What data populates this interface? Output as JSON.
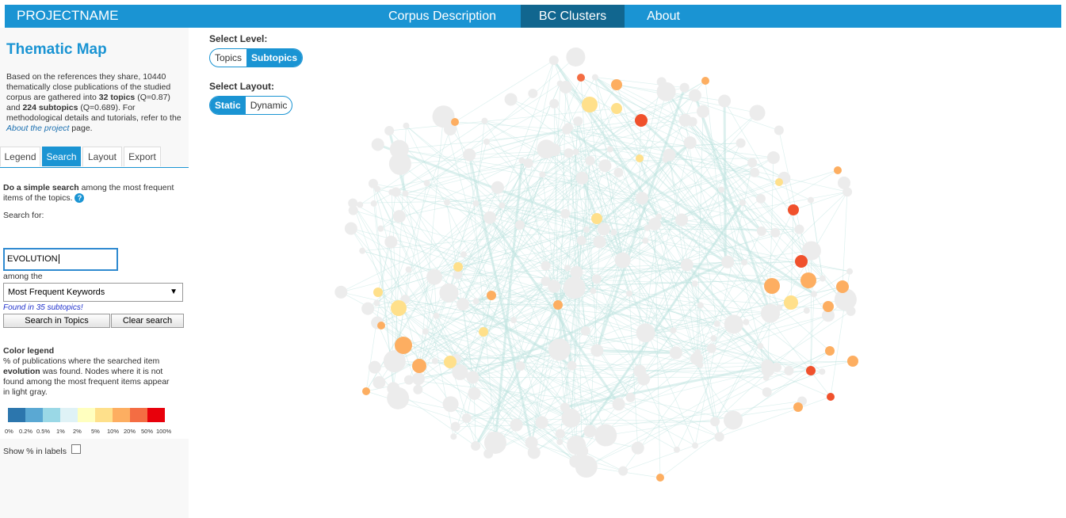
{
  "navbar": {
    "brand": "PROJECTNAME",
    "items": [
      {
        "label": "Corpus Description",
        "active": false
      },
      {
        "label": "BC Clusters",
        "active": true
      },
      {
        "label": "About",
        "active": false
      }
    ]
  },
  "sidebar": {
    "title": "Thematic Map",
    "description": {
      "intro": "Based on the references they share, 10440 thematically close publications of the studied corpus are gathered into ",
      "topics_count": "32 topics",
      "topics_q": " (Q=0.87) and ",
      "subtopics_count": "224 subtopics",
      "subtopics_q": " (Q=0.689). For methodological details and tutorials, refer to the ",
      "link": "About the project",
      "outro": " page."
    },
    "tabs": [
      {
        "label": "Legend",
        "active": false
      },
      {
        "label": "Search",
        "active": true
      },
      {
        "label": "Layout",
        "active": false
      },
      {
        "label": "Export",
        "active": false
      }
    ],
    "search": {
      "intro_bold": "Do a simple search",
      "intro_rest": " among the most frequent items of the topics.",
      "help": "?",
      "search_for_label": "Search for:",
      "query": "EVOLUTION",
      "among_label": "among the",
      "field_selected": "Most Frequent Keywords",
      "found_text": "Found in 35 subtopics!",
      "search_button": "Search in Topics",
      "clear_button": "Clear search"
    },
    "color_legend": {
      "title": "Color legend",
      "text_a": "% of publications where the searched item ",
      "item": "evolution",
      "text_b": " was found. Nodes where it is not found among the most frequent items appear in light gray.",
      "swatches": [
        "#2c76ad",
        "#5aa8d3",
        "#9ad8e6",
        "#dff2f6",
        "#ffffbf",
        "#fee08b",
        "#fdae61",
        "#f46d43",
        "#e8000b"
      ],
      "labels": [
        "0%",
        "0.2%",
        "0.5%",
        "1%",
        "2%",
        "5%",
        "10%",
        "20%",
        "50%",
        "100%"
      ],
      "show_pct_label": "Show % in labels"
    }
  },
  "controls": {
    "level_label": "Select Level:",
    "level_options": [
      "Topics",
      "Subtopics"
    ],
    "level_selected": "Subtopics",
    "layout_label": "Select Layout:",
    "layout_options": [
      "Static",
      "Dynamic"
    ],
    "layout_selected": "Static"
  },
  "colors": {
    "brand": "#1a94d3",
    "nav_active": "#11668f",
    "node_gray": "#ececec",
    "edge": "#bfe3e0"
  }
}
